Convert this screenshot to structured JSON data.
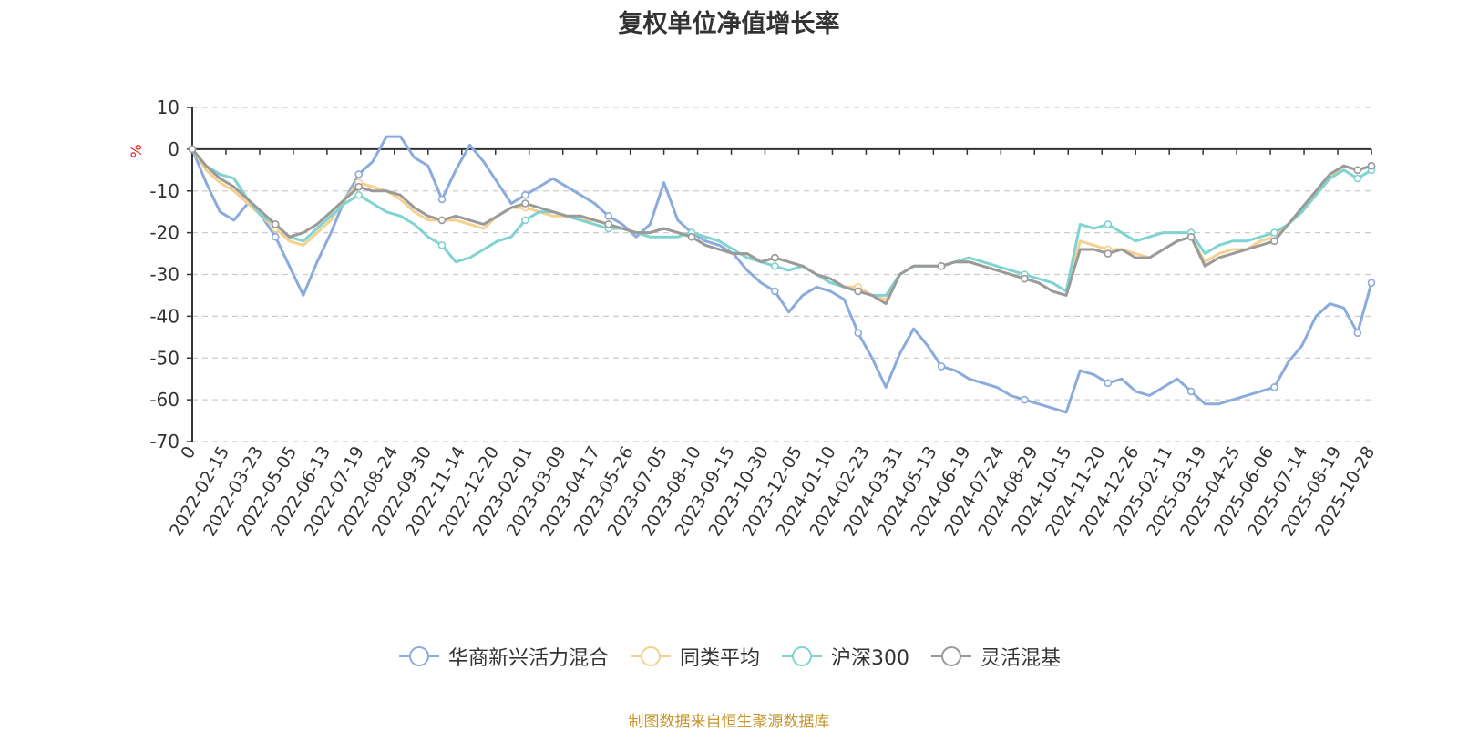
{
  "colors": {
    "axis": "#333333",
    "grid": "#cccccc",
    "ylabel": "#e02020",
    "source": "#c8962e"
  },
  "source_note": "制图数据来自恒生聚源数据库",
  "chart_data": {
    "type": "line",
    "title": "复权单位净值增长率",
    "ylabel": "%",
    "xlabel": "",
    "ylim": [
      -70,
      10
    ],
    "yticks": [
      10,
      0,
      -10,
      -20,
      -30,
      -40,
      -50,
      -60,
      -70
    ],
    "grid": true,
    "legend_position": "bottom",
    "x_tick_labels": [
      "0",
      "2022-02-15",
      "2022-03-23",
      "2022-05-05",
      "2022-06-13",
      "2022-07-19",
      "2022-08-24",
      "2022-09-30",
      "2022-11-14",
      "2022-12-20",
      "2023-02-01",
      "2023-03-09",
      "2023-04-17",
      "2023-05-26",
      "2023-07-05",
      "2023-08-10",
      "2023-09-15",
      "2023-10-30",
      "2023-12-05",
      "2024-01-10",
      "2024-02-23",
      "2024-03-31",
      "2024-05-13",
      "2024-06-19",
      "2024-07-24",
      "2024-08-29",
      "2024-10-15",
      "2024-11-20",
      "2024-12-26",
      "2025-02-11",
      "2025-03-19",
      "2025-04-25",
      "2025-06-06",
      "2025-07-14",
      "2025-08-19",
      "2025-10-28"
    ],
    "series": [
      {
        "name": "华商新兴活力混合",
        "color": "#8aabdc",
        "values": [
          0,
          -8,
          -15,
          -17,
          -13,
          -16,
          -21,
          -28,
          -35,
          -27,
          -20,
          -12,
          -6,
          -3,
          3,
          3,
          -2,
          -4,
          -12,
          -5,
          1,
          -3,
          -8,
          -13,
          -11,
          -9,
          -7,
          -9,
          -11,
          -13,
          -16,
          -18,
          -21,
          -18,
          -8,
          -17,
          -20,
          -22,
          -23,
          -25,
          -29,
          -32,
          -34,
          -39,
          -35,
          -33,
          -34,
          -36,
          -44,
          -50,
          -57,
          -49,
          -43,
          -47,
          -52,
          -53,
          -55,
          -56,
          -57,
          -59,
          -60,
          -61,
          -62,
          -63,
          -53,
          -54,
          -56,
          -55,
          -58,
          -59,
          -57,
          -55,
          -58,
          -61,
          -61,
          -60,
          -59,
          -58,
          -57,
          -51,
          -47,
          -40,
          -37,
          -38,
          -44,
          -32
        ]
      },
      {
        "name": "同类平均",
        "color": "#f6d08e",
        "values": [
          0,
          -5,
          -8,
          -10,
          -13,
          -16,
          -19,
          -22,
          -23,
          -20,
          -17,
          -12,
          -8,
          -9,
          -10,
          -12,
          -15,
          -17,
          -17,
          -17,
          -18,
          -19,
          -16,
          -14,
          -14,
          -15,
          -16,
          -16,
          -17,
          -17,
          -18,
          -19,
          -20,
          -20,
          -19,
          -20,
          -21,
          -23,
          -24,
          -25,
          -25,
          -27,
          -26,
          -27,
          -28,
          -30,
          -31,
          -33,
          -33,
          -35,
          -36,
          -30,
          -28,
          -28,
          -28,
          -27,
          -27,
          -28,
          -29,
          -30,
          -31,
          -32,
          -34,
          -35,
          -22,
          -23,
          -24,
          -24,
          -25,
          -26,
          -24,
          -22,
          -21,
          -27,
          -25,
          -24,
          -24,
          -22,
          -21,
          -18,
          -15,
          -11,
          -7,
          -4,
          -5,
          -4
        ]
      },
      {
        "name": "沪深300",
        "color": "#7fd3d0",
        "values": [
          0,
          -4,
          -6,
          -7,
          -12,
          -16,
          -18,
          -21,
          -22,
          -19,
          -16,
          -13,
          -11,
          -13,
          -15,
          -16,
          -18,
          -21,
          -23,
          -27,
          -26,
          -24,
          -22,
          -21,
          -17,
          -15,
          -15,
          -16,
          -17,
          -18,
          -19,
          -19,
          -20,
          -21,
          -21,
          -21,
          -20,
          -21,
          -22,
          -24,
          -26,
          -27,
          -28,
          -29,
          -28,
          -30,
          -32,
          -33,
          -34,
          -35,
          -35,
          -30,
          -28,
          -28,
          -28,
          -27,
          -26,
          -27,
          -28,
          -29,
          -30,
          -31,
          -32,
          -34,
          -18,
          -19,
          -18,
          -20,
          -22,
          -21,
          -20,
          -20,
          -20,
          -25,
          -23,
          -22,
          -22,
          -21,
          -20,
          -18,
          -15,
          -11,
          -7,
          -5,
          -7,
          -5
        ]
      },
      {
        "name": "灵活混基",
        "color": "#9a9a9a",
        "values": [
          0,
          -4,
          -7,
          -9,
          -12,
          -15,
          -18,
          -21,
          -20,
          -18,
          -15,
          -12,
          -9,
          -10,
          -10,
          -11,
          -14,
          -16,
          -17,
          -16,
          -17,
          -18,
          -16,
          -14,
          -13,
          -14,
          -15,
          -16,
          -16,
          -17,
          -18,
          -19,
          -20,
          -20,
          -19,
          -20,
          -21,
          -23,
          -24,
          -25,
          -25,
          -27,
          -26,
          -27,
          -28,
          -30,
          -31,
          -33,
          -34,
          -35,
          -37,
          -30,
          -28,
          -28,
          -28,
          -27,
          -27,
          -28,
          -29,
          -30,
          -31,
          -32,
          -34,
          -35,
          -24,
          -24,
          -25,
          -24,
          -26,
          -26,
          -24,
          -22,
          -21,
          -28,
          -26,
          -25,
          -24,
          -23,
          -22,
          -18,
          -14,
          -10,
          -6,
          -4,
          -5,
          -4
        ]
      }
    ]
  }
}
